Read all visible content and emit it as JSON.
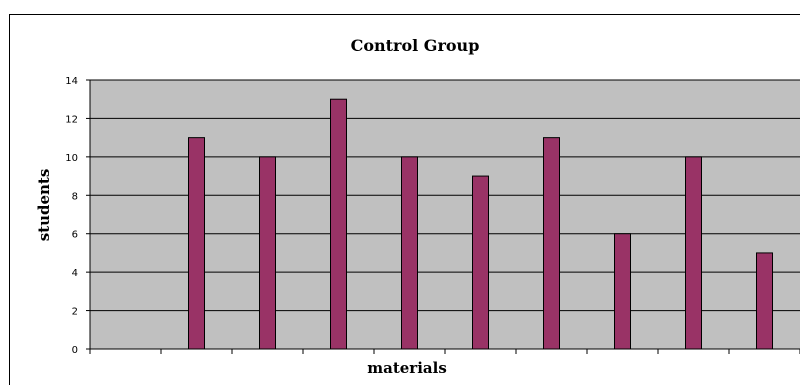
{
  "chart_data": {
    "type": "bar",
    "title": "Control Group",
    "xlabel": "materials",
    "ylabel": "students",
    "ylim": [
      0,
      14
    ],
    "yticks": [
      0,
      2,
      4,
      6,
      8,
      10,
      12,
      14
    ],
    "categories": [
      "",
      "",
      "",
      "",
      "",
      "",
      "",
      "",
      "",
      ""
    ],
    "values": [
      0,
      11,
      10,
      13,
      10,
      9,
      11,
      6,
      10,
      5
    ],
    "grid": true,
    "legend": "none",
    "colors": {
      "plot_background": "#c0c0c0",
      "bar_fill": "#993366",
      "bar_stroke": "#000000",
      "gridline": "#000000"
    }
  }
}
